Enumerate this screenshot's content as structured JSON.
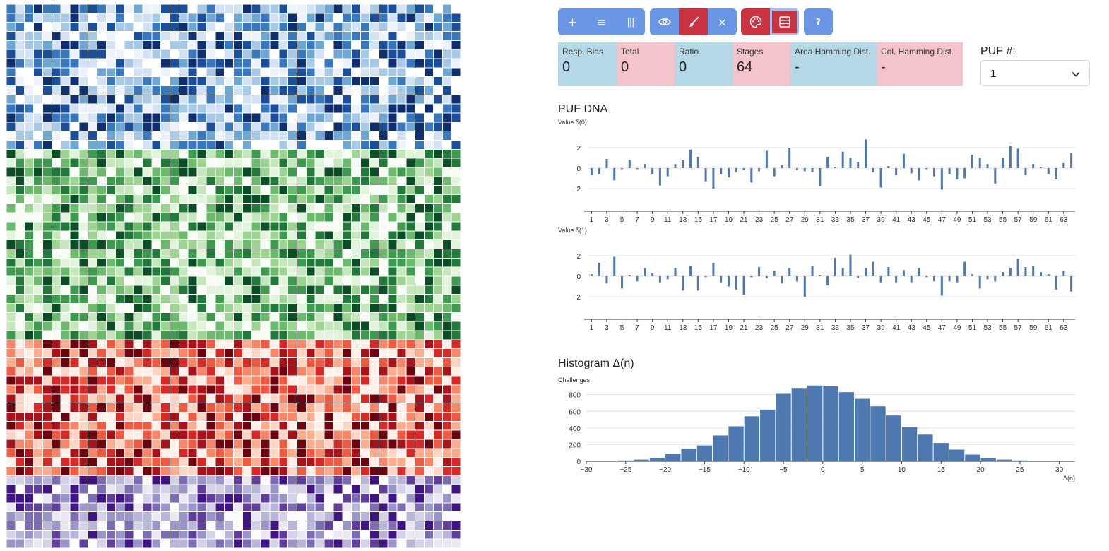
{
  "heatmap": {
    "grid": {
      "columns": 50,
      "blocks": [
        {
          "name": "blue",
          "rows": 16,
          "palette": [
            "#ffffff",
            "#eef3fb",
            "#d2e1f3",
            "#a8c9e6",
            "#6ea7d4",
            "#3a78bd",
            "#1b4f9c",
            "#102f6e"
          ]
        },
        {
          "name": "green",
          "rows": 21,
          "palette": [
            "#f7fcf5",
            "#e3f4dd",
            "#c4e7bc",
            "#9dd491",
            "#6cbb6d",
            "#3e9a4e",
            "#217a3a",
            "#0b4d24"
          ]
        },
        {
          "name": "red",
          "rows": 15,
          "palette": [
            "#fff0ea",
            "#fdd5c4",
            "#fcac8f",
            "#f88668",
            "#ef5a42",
            "#d52a28",
            "#a8141b",
            "#6d0510"
          ]
        },
        {
          "name": "purple",
          "rows": 8,
          "palette": [
            "#fcfbfd",
            "#ebe8f3",
            "#d4d2e7",
            "#b7b5d8",
            "#9a95c7",
            "#7c6db2",
            "#5f3f9a",
            "#3f1483"
          ]
        }
      ]
    }
  },
  "toolbar": {
    "groups": [
      {
        "buttons": [
          {
            "icon": "plus-icon",
            "label": "+"
          },
          {
            "icon": "rows-icon",
            "label": "≡"
          },
          {
            "icon": "columns-icon",
            "label": "|||"
          }
        ]
      },
      {
        "buttons": [
          {
            "icon": "eye-icon"
          },
          {
            "icon": "brush-icon"
          },
          {
            "icon": "close-icon",
            "label": "×"
          }
        ]
      },
      {
        "buttons": [
          {
            "icon": "palette-icon"
          },
          {
            "icon": "layout-icon"
          }
        ]
      },
      {
        "buttons": [
          {
            "icon": "help-icon",
            "label": "?"
          }
        ]
      }
    ]
  },
  "stats": {
    "resp_bias": {
      "label": "Resp. Bias",
      "value": "0"
    },
    "total": {
      "label": "Total",
      "value": "0"
    },
    "ratio": {
      "label": "Ratio",
      "value": "0"
    },
    "stages": {
      "label": "Stages",
      "value": "64"
    },
    "area_hamming": {
      "label": "Area Hamming Dist.",
      "value": "-"
    },
    "col_hamming": {
      "label": "Col. Hamming Dist.",
      "value": "-"
    }
  },
  "puf_select": {
    "label": "PUF #:",
    "value": "1"
  },
  "puf_dna": {
    "title": "PUF DNA"
  },
  "histogram": {
    "title": "Histogram Δ(n)"
  },
  "colors": {
    "accent_blue": "#6b96e6",
    "accent_red": "#cc3340",
    "bar": "#4e79b0",
    "stat_blue": "#b5d8e6",
    "stat_pink": "#f4c3cb"
  },
  "chart_data": [
    {
      "type": "bar",
      "title": "PUF DNA",
      "ylabel": "Value δ(0)",
      "xlabel": "",
      "x": [
        1,
        2,
        3,
        4,
        5,
        6,
        7,
        8,
        9,
        10,
        11,
        12,
        13,
        14,
        15,
        16,
        17,
        18,
        19,
        20,
        21,
        22,
        23,
        24,
        25,
        26,
        27,
        28,
        29,
        30,
        31,
        32,
        33,
        34,
        35,
        36,
        37,
        38,
        39,
        40,
        41,
        42,
        43,
        44,
        45,
        46,
        47,
        48,
        49,
        50,
        51,
        52,
        53,
        54,
        55,
        56,
        57,
        58,
        59,
        60,
        61,
        62,
        63,
        64
      ],
      "x_tick_labels": [
        "1",
        "3",
        "5",
        "7",
        "9",
        "11",
        "13",
        "15",
        "17",
        "19",
        "21",
        "23",
        "25",
        "27",
        "29",
        "31",
        "33",
        "35",
        "37",
        "39",
        "41",
        "43",
        "45",
        "47",
        "49",
        "51",
        "53",
        "55",
        "57",
        "59",
        "61",
        "63"
      ],
      "values": [
        -0.7,
        -0.6,
        0.9,
        -1.2,
        -0.1,
        0.8,
        -0.1,
        0.4,
        -0.6,
        -1.7,
        -0.8,
        0.4,
        0.8,
        1.8,
        1.1,
        -1.3,
        -2.0,
        -0.6,
        -0.9,
        -0.4,
        -0.2,
        -1.4,
        -0.3,
        1.7,
        -0.8,
        0.3,
        2.0,
        -0.2,
        -0.3,
        -0.4,
        -1.8,
        1.1,
        0.1,
        1.6,
        1.0,
        0.6,
        2.8,
        -0.4,
        -1.9,
        0.2,
        -0.7,
        1.4,
        -0.5,
        -1.2,
        -0.1,
        -0.8,
        -2.1,
        -0.6,
        -1.1,
        -1.0,
        1.3,
        1.0,
        0.4,
        -1.5,
        1.0,
        2.2,
        1.9,
        -0.7,
        0.4,
        0.1,
        -0.6,
        -1.1,
        0.5,
        1.5
      ],
      "ylim": [
        -3,
        3
      ],
      "y_ticks": [
        -2,
        0,
        2
      ],
      "y_tick_labels": [
        "−2",
        "0",
        "2"
      ]
    },
    {
      "type": "bar",
      "title": "",
      "ylabel": "Value δ(1)",
      "xlabel": "",
      "x": [
        1,
        2,
        3,
        4,
        5,
        6,
        7,
        8,
        9,
        10,
        11,
        12,
        13,
        14,
        15,
        16,
        17,
        18,
        19,
        20,
        21,
        22,
        23,
        24,
        25,
        26,
        27,
        28,
        29,
        30,
        31,
        32,
        33,
        34,
        35,
        36,
        37,
        38,
        39,
        40,
        41,
        42,
        43,
        44,
        45,
        46,
        47,
        48,
        49,
        50,
        51,
        52,
        53,
        54,
        55,
        56,
        57,
        58,
        59,
        60,
        61,
        62,
        63,
        64
      ],
      "x_tick_labels": [
        "1",
        "3",
        "5",
        "7",
        "9",
        "11",
        "13",
        "15",
        "17",
        "19",
        "21",
        "23",
        "25",
        "27",
        "29",
        "31",
        "33",
        "35",
        "37",
        "39",
        "41",
        "43",
        "45",
        "47",
        "49",
        "51",
        "53",
        "55",
        "57",
        "59",
        "61",
        "63"
      ],
      "values": [
        0.2,
        1.3,
        -0.7,
        1.9,
        -1.2,
        0.1,
        -0.5,
        0.8,
        0.3,
        -0.6,
        -0.3,
        0.8,
        -1.4,
        1.0,
        -1.4,
        -0.1,
        1.3,
        -0.6,
        -1.0,
        -1.3,
        -1.8,
        -0.1,
        0.9,
        -0.2,
        0.5,
        -0.7,
        0.8,
        -0.5,
        -2.0,
        1.0,
        0.1,
        -0.9,
        1.8,
        0.8,
        2.1,
        -0.2,
        0.8,
        1.4,
        -0.6,
        0.9,
        -0.6,
        0.6,
        -0.6,
        0.8,
        -0.1,
        -0.5,
        -1.9,
        -0.5,
        -0.6,
        1.4,
        0.2,
        -1.2,
        -0.3,
        -0.5,
        0.4,
        0.8,
        1.7,
        0.9,
        1.0,
        0.4,
        0.2,
        -1.3,
        0.5,
        -1.5
      ],
      "ylim": [
        -3,
        3
      ],
      "y_ticks": [
        -2,
        0,
        2
      ],
      "y_tick_labels": [
        "−2",
        "0",
        "2"
      ]
    },
    {
      "type": "bar",
      "title": "Histogram Δ(n)",
      "ylabel": "Challenges",
      "xlabel": "Δ(n)",
      "bin_edges": [
        -28,
        -26,
        -24,
        -22,
        -20,
        -18,
        -16,
        -14,
        -12,
        -10,
        -8,
        -6,
        -4,
        -2,
        0,
        2,
        4,
        6,
        8,
        10,
        12,
        14,
        16,
        18,
        20,
        22,
        24,
        26,
        28
      ],
      "values": [
        2,
        10,
        20,
        40,
        90,
        150,
        190,
        310,
        420,
        540,
        620,
        810,
        880,
        910,
        900,
        830,
        750,
        660,
        550,
        410,
        320,
        220,
        140,
        80,
        40,
        20,
        10,
        3
      ],
      "xlim": [
        -30,
        32
      ],
      "ylim": [
        0,
        950
      ],
      "x_ticks": [
        -30,
        -25,
        -20,
        -15,
        -10,
        -5,
        0,
        5,
        10,
        15,
        20,
        25,
        30
      ],
      "x_tick_labels": [
        "−30",
        "−25",
        "−20",
        "−15",
        "−10",
        "−5",
        "0",
        "5",
        "10",
        "15",
        "20",
        "25",
        "30"
      ],
      "y_ticks": [
        0,
        200,
        400,
        600,
        800
      ],
      "y_tick_labels": [
        "0",
        "200",
        "400",
        "600",
        "800"
      ]
    }
  ]
}
